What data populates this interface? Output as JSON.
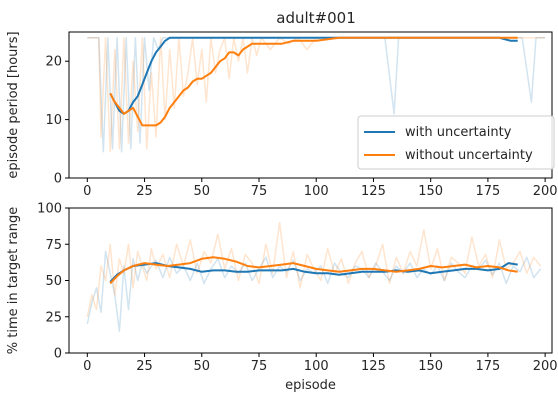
{
  "title": "adult#001",
  "colors": {
    "with_uncertainty": "#1f77b4",
    "without_uncertainty": "#ff7f0e",
    "axis": "#000000",
    "text": "#262626"
  },
  "chart_data": [
    {
      "type": "line",
      "title": "adult#001",
      "xlabel": "",
      "ylabel": "episode period [hours]",
      "xlim": [
        -8,
        203
      ],
      "ylim": [
        0,
        25
      ],
      "xticks": [
        0,
        25,
        50,
        75,
        100,
        125,
        150,
        175,
        200
      ],
      "xtick_labels": [
        "0",
        "25",
        "50",
        "75",
        "100",
        "125",
        "150",
        "175",
        "200"
      ],
      "yticks": [
        0,
        10,
        20
      ],
      "ytick_labels": [
        "0",
        "10",
        "20"
      ],
      "grid": false,
      "legend": {
        "placement": "lower-right",
        "entries": [
          "with uncertainty",
          "without uncertainty"
        ]
      },
      "series": [
        {
          "name": "with uncertainty",
          "style": "smoothed",
          "x": [
            10,
            12,
            14,
            16,
            18,
            20,
            22,
            24,
            26,
            28,
            30,
            32,
            34,
            36,
            38,
            40,
            60,
            80,
            100,
            120,
            140,
            160,
            180,
            185,
            188
          ],
          "y": [
            14.5,
            13,
            11.5,
            11,
            11.5,
            13,
            14,
            16,
            18,
            20,
            21.5,
            22.5,
            23.5,
            24,
            24,
            24,
            24,
            24,
            24,
            24,
            24,
            24,
            24,
            23.5,
            23.5
          ]
        },
        {
          "name": "without uncertainty",
          "style": "smoothed",
          "x": [
            10,
            12,
            14,
            16,
            18,
            20,
            22,
            24,
            26,
            28,
            30,
            32,
            34,
            36,
            38,
            40,
            42,
            44,
            46,
            48,
            50,
            52,
            54,
            56,
            58,
            60,
            62,
            64,
            66,
            68,
            70,
            72,
            74,
            76,
            80,
            85,
            90,
            95,
            100,
            110,
            120,
            140,
            160,
            180,
            188
          ],
          "y": [
            14.5,
            13,
            12,
            11,
            11.5,
            12,
            10.5,
            9,
            9,
            9,
            9,
            9.5,
            10.5,
            12,
            13,
            14,
            15,
            15.5,
            16.5,
            17,
            17,
            17.5,
            18,
            19,
            20,
            20.5,
            21.5,
            21.5,
            21,
            22,
            22.5,
            23,
            23,
            23,
            23,
            23,
            23.5,
            23.5,
            23.5,
            24,
            24,
            24,
            24,
            24,
            24
          ]
        },
        {
          "name": "with uncertainty",
          "style": "raw",
          "x": [
            0,
            5,
            7,
            9,
            11,
            13,
            15,
            17,
            19,
            21,
            23,
            25,
            27,
            29,
            31,
            33,
            35,
            37,
            40,
            60,
            80,
            100,
            120,
            130,
            134,
            136,
            138,
            160,
            180,
            190,
            194,
            196,
            198,
            200
          ],
          "y": [
            24,
            24,
            4.5,
            24,
            5,
            24,
            4.5,
            24,
            5,
            24,
            6,
            24,
            15,
            24,
            22,
            24,
            24,
            24,
            24,
            24,
            24,
            24,
            24,
            24,
            11,
            24,
            24,
            24,
            24,
            24,
            13,
            24,
            24,
            24
          ]
        },
        {
          "name": "without uncertainty",
          "style": "raw",
          "x": [
            0,
            5,
            6,
            8,
            10,
            12,
            14,
            16,
            18,
            20,
            22,
            24,
            26,
            28,
            30,
            32,
            34,
            36,
            38,
            40,
            42,
            44,
            46,
            48,
            50,
            52,
            54,
            56,
            58,
            60,
            62,
            64,
            66,
            68,
            70,
            72,
            74,
            76,
            80,
            84,
            88,
            92,
            96,
            100,
            110,
            120,
            140,
            160,
            180,
            200
          ],
          "y": [
            24,
            24,
            7,
            24,
            4.5,
            22,
            5,
            24,
            6,
            20,
            8,
            24,
            5,
            18,
            7,
            24,
            10,
            22,
            12,
            24,
            14,
            18,
            24,
            16,
            22,
            13,
            24,
            18,
            22,
            24,
            17,
            24,
            20,
            24,
            18,
            24,
            21,
            24,
            22,
            24,
            23,
            24,
            22,
            24,
            24,
            24,
            24,
            24,
            24,
            24
          ]
        }
      ]
    },
    {
      "type": "line",
      "title": "",
      "xlabel": "episode",
      "ylabel": "% time in target range",
      "xlim": [
        -8,
        203
      ],
      "ylim": [
        0,
        100
      ],
      "xticks": [
        0,
        25,
        50,
        75,
        100,
        125,
        150,
        175,
        200
      ],
      "xtick_labels": [
        "0",
        "25",
        "50",
        "75",
        "100",
        "125",
        "150",
        "175",
        "200"
      ],
      "yticks": [
        0,
        25,
        50,
        75,
        100
      ],
      "ytick_labels": [
        "0",
        "25",
        "50",
        "75",
        "100"
      ],
      "grid": false,
      "series": [
        {
          "name": "with uncertainty",
          "style": "smoothed",
          "x": [
            10,
            13,
            16,
            20,
            25,
            30,
            35,
            40,
            45,
            50,
            55,
            60,
            65,
            70,
            75,
            80,
            85,
            90,
            95,
            100,
            105,
            110,
            115,
            120,
            125,
            130,
            135,
            140,
            145,
            150,
            155,
            160,
            165,
            170,
            175,
            180,
            184,
            188
          ],
          "y": [
            49,
            54,
            57,
            60,
            61,
            62,
            60,
            59,
            58,
            56,
            57,
            57,
            56,
            56,
            57,
            57,
            57,
            58,
            56,
            55,
            55,
            54,
            55,
            56,
            56,
            56,
            57,
            56,
            57,
            55,
            56,
            57,
            58,
            58,
            57,
            58,
            62,
            61
          ]
        },
        {
          "name": "without uncertainty",
          "style": "smoothed",
          "x": [
            10,
            13,
            16,
            20,
            25,
            30,
            35,
            40,
            45,
            50,
            55,
            60,
            65,
            70,
            75,
            80,
            85,
            90,
            95,
            100,
            105,
            110,
            115,
            120,
            125,
            130,
            135,
            140,
            145,
            150,
            155,
            160,
            165,
            170,
            175,
            180,
            184,
            188
          ],
          "y": [
            48,
            53,
            57,
            60,
            62,
            61,
            60,
            61,
            62,
            65,
            66,
            65,
            63,
            60,
            59,
            60,
            61,
            62,
            60,
            58,
            57,
            56,
            57,
            58,
            58,
            57,
            56,
            57,
            58,
            60,
            59,
            60,
            61,
            59,
            60,
            59,
            57,
            56
          ]
        },
        {
          "name": "with uncertainty",
          "style": "raw",
          "x": [
            0,
            2,
            4,
            6,
            8,
            10,
            12,
            14,
            16,
            18,
            20,
            22,
            24,
            26,
            28,
            30,
            33,
            36,
            39,
            42,
            45,
            48,
            51,
            54,
            57,
            60,
            63,
            66,
            69,
            72,
            75,
            78,
            81,
            84,
            87,
            90,
            93,
            96,
            99,
            102,
            105,
            108,
            111,
            114,
            117,
            120,
            123,
            126,
            129,
            132,
            135,
            138,
            141,
            144,
            147,
            150,
            153,
            156,
            159,
            162,
            165,
            168,
            171,
            174,
            177,
            180,
            183,
            186,
            189,
            192,
            195,
            198
          ],
          "y": [
            20,
            35,
            45,
            28,
            70,
            55,
            40,
            15,
            60,
            30,
            65,
            50,
            62,
            55,
            60,
            64,
            52,
            66,
            55,
            60,
            50,
            62,
            48,
            58,
            65,
            52,
            60,
            55,
            62,
            50,
            58,
            66,
            52,
            60,
            56,
            64,
            50,
            58,
            55,
            60,
            48,
            62,
            55,
            52,
            60,
            58,
            52,
            62,
            56,
            50,
            60,
            55,
            62,
            52,
            58,
            54,
            60,
            50,
            62,
            56,
            52,
            60,
            58,
            64,
            54,
            62,
            48,
            60,
            56,
            66,
            52,
            58
          ]
        },
        {
          "name": "without uncertainty",
          "style": "raw",
          "x": [
            0,
            2,
            4,
            6,
            8,
            10,
            12,
            14,
            16,
            18,
            20,
            22,
            24,
            26,
            28,
            30,
            33,
            36,
            39,
            42,
            45,
            48,
            51,
            54,
            57,
            60,
            63,
            66,
            69,
            72,
            75,
            78,
            81,
            84,
            87,
            90,
            93,
            96,
            99,
            102,
            105,
            108,
            111,
            114,
            117,
            120,
            123,
            126,
            129,
            132,
            135,
            138,
            141,
            144,
            147,
            150,
            153,
            156,
            159,
            162,
            165,
            168,
            171,
            174,
            177,
            180,
            183,
            186,
            189,
            192,
            195,
            198
          ],
          "y": [
            25,
            40,
            30,
            60,
            50,
            75,
            40,
            65,
            55,
            75,
            45,
            70,
            60,
            50,
            72,
            58,
            68,
            52,
            75,
            60,
            78,
            55,
            70,
            62,
            82,
            58,
            72,
            50,
            68,
            62,
            48,
            75,
            55,
            90,
            52,
            70,
            45,
            68,
            58,
            50,
            72,
            55,
            65,
            48,
            62,
            70,
            52,
            60,
            75,
            48,
            66,
            55,
            70,
            60,
            85,
            58,
            72,
            50,
            66,
            62,
            55,
            80,
            60,
            68,
            52,
            78,
            58,
            62,
            70,
            55,
            66,
            60
          ]
        }
      ]
    }
  ]
}
